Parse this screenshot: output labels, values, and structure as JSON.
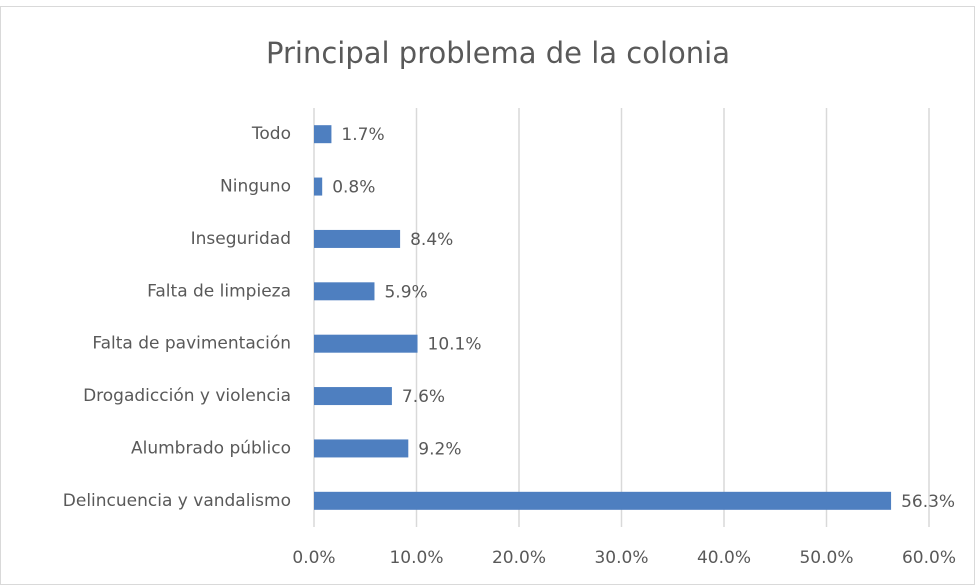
{
  "chart_data": {
    "type": "hbar",
    "title": "Principal problema de la colonia",
    "categories": [
      "Todo",
      "Ninguno",
      "Inseguridad",
      "Falta de limpieza",
      "Falta de pavimentación",
      "Drogadicción y violencia",
      "Alumbrado público",
      "Delincuencia y vandalismo"
    ],
    "values": [
      1.7,
      0.8,
      8.4,
      5.9,
      10.1,
      7.6,
      9.2,
      56.3
    ],
    "value_labels": [
      "1.7%",
      "0.8%",
      "8.4%",
      "5.9%",
      "10.1%",
      "7.6%",
      "9.2%",
      "56.3%"
    ],
    "color": "#4e7fc0",
    "xlim": [
      0,
      60
    ],
    "xticks": [
      {
        "value": 0,
        "label": "0.0%"
      },
      {
        "value": 10,
        "label": "10.0%"
      },
      {
        "value": 20,
        "label": "20.0%"
      },
      {
        "value": 30,
        "label": "30.0%"
      },
      {
        "value": 40,
        "label": "40.0%"
      },
      {
        "value": 50,
        "label": "50.0%"
      },
      {
        "value": 60,
        "label": "60.0%"
      }
    ],
    "grid": true
  }
}
